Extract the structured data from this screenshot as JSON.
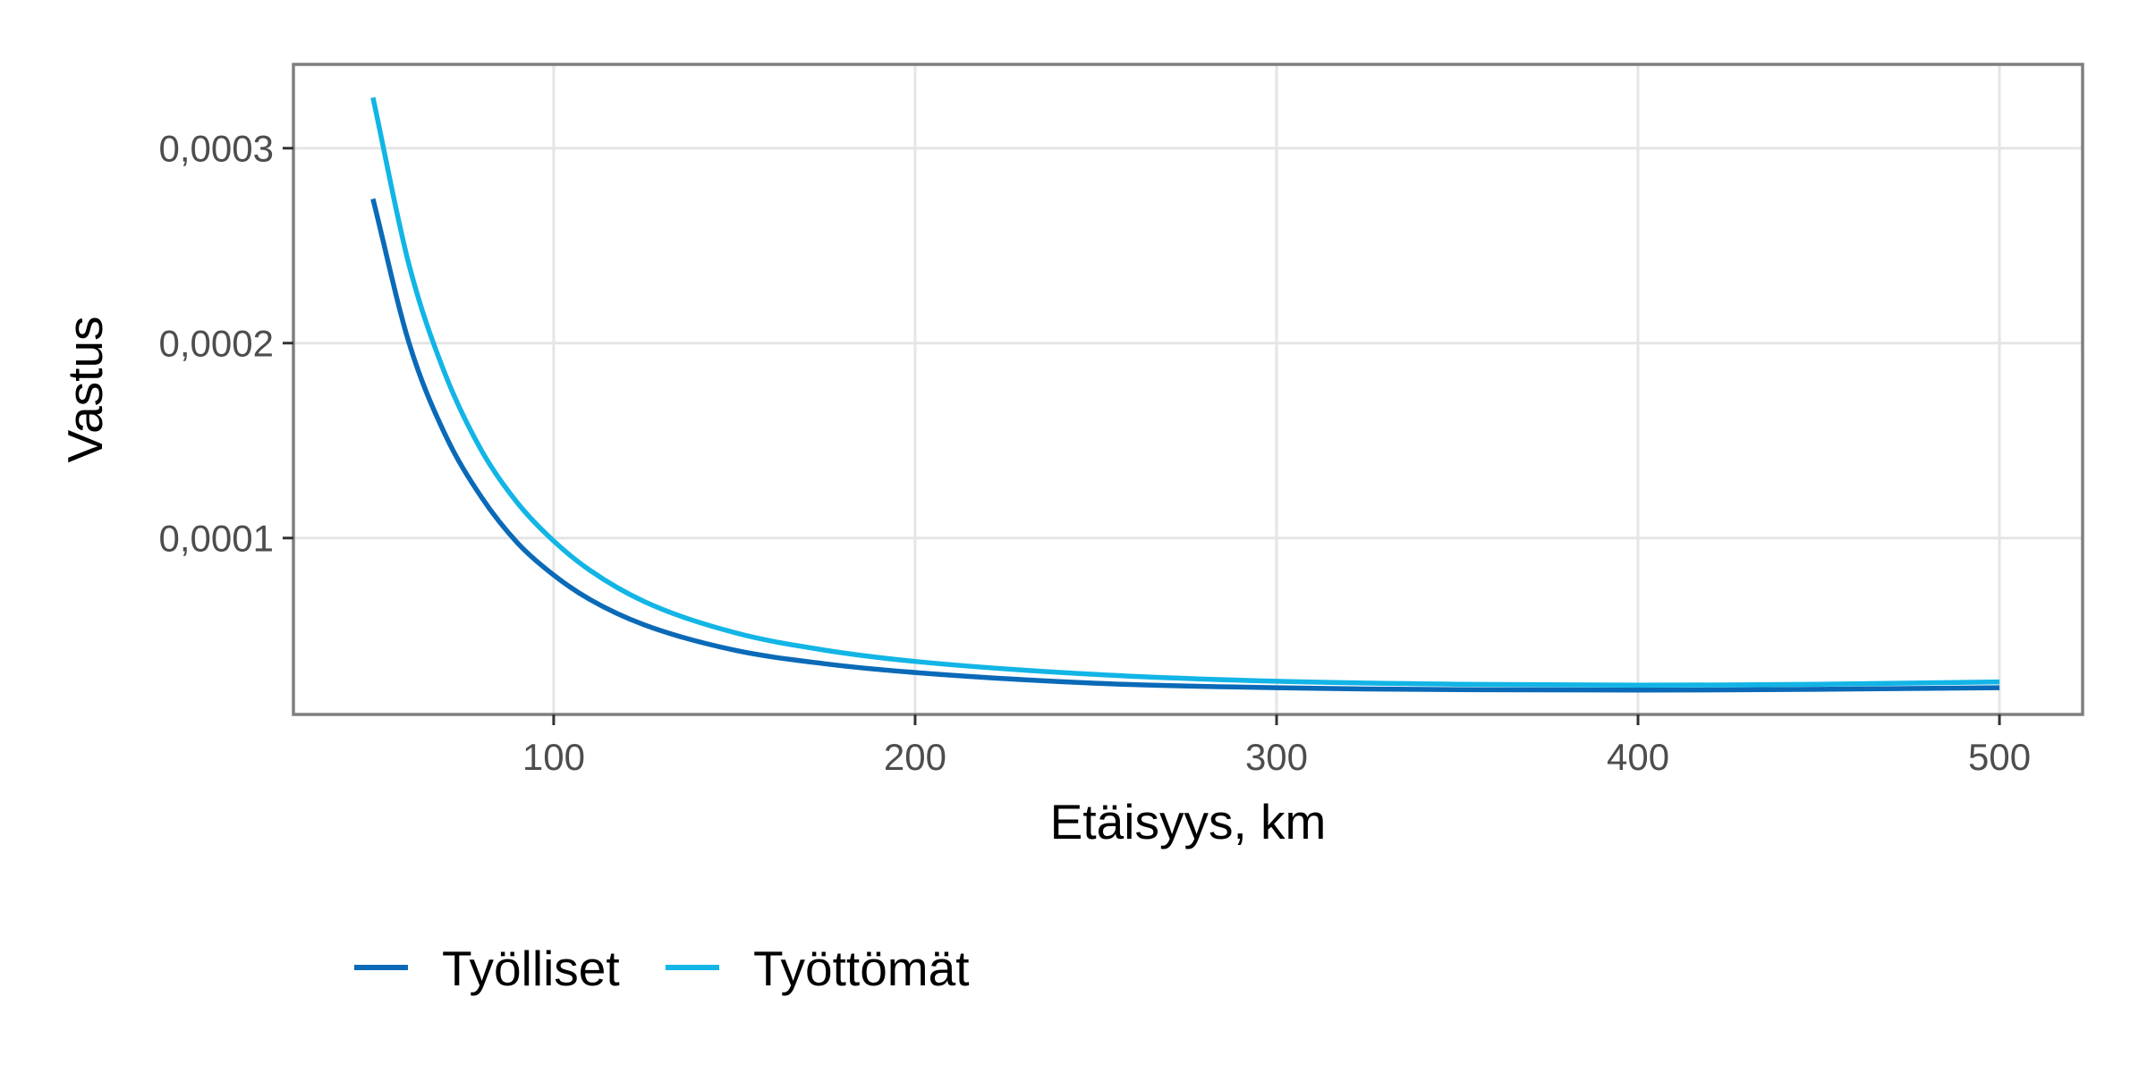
{
  "chart_data": {
    "type": "line",
    "title": "",
    "xlabel": "Etäisyys, km",
    "ylabel": "Vastus",
    "xlim": [
      28,
      523
    ],
    "ylim": [
      9.5e-06,
      0.000343
    ],
    "x_ticks": [
      {
        "value": 100,
        "label": "100"
      },
      {
        "value": 200,
        "label": "200"
      },
      {
        "value": 300,
        "label": "300"
      },
      {
        "value": 400,
        "label": "400"
      },
      {
        "value": 500,
        "label": "500"
      }
    ],
    "y_ticks": [
      {
        "value": 0.0001,
        "label": "0,0001"
      },
      {
        "value": 0.0002,
        "label": "0,0002"
      },
      {
        "value": 0.0003,
        "label": "0,0003"
      }
    ],
    "grid": true,
    "legend_position": "bottom-left",
    "series": [
      {
        "name": "Työlliset",
        "color": "#0a6ab7",
        "x": [
          50,
          60,
          70,
          80,
          90,
          100,
          110,
          125,
          150,
          175,
          200,
          250,
          300,
          350,
          400,
          450,
          500
        ],
        "y": [
          0.000274,
          0.0002,
          0.000153,
          0.000121,
          9.75e-05,
          8.1e-05,
          6.85e-05,
          5.55e-05,
          4.25e-05,
          3.55e-05,
          3.1e-05,
          2.55e-05,
          2.32e-05,
          2.22e-05,
          2.2e-05,
          2.24e-05,
          2.32e-05
        ]
      },
      {
        "name": "Työttömät",
        "color": "#12b5e5",
        "x": [
          50,
          60,
          70,
          80,
          90,
          100,
          110,
          125,
          150,
          175,
          200,
          250,
          300,
          350,
          400,
          450,
          500
        ],
        "y": [
          0.000326,
          0.00024,
          0.000184,
          0.000145,
          0.000118,
          9.85e-05,
          8.35e-05,
          6.75e-05,
          5.15e-05,
          4.25e-05,
          3.67e-05,
          3e-05,
          2.65e-05,
          2.5e-05,
          2.45e-05,
          2.5e-05,
          2.62e-05
        ]
      }
    ]
  }
}
